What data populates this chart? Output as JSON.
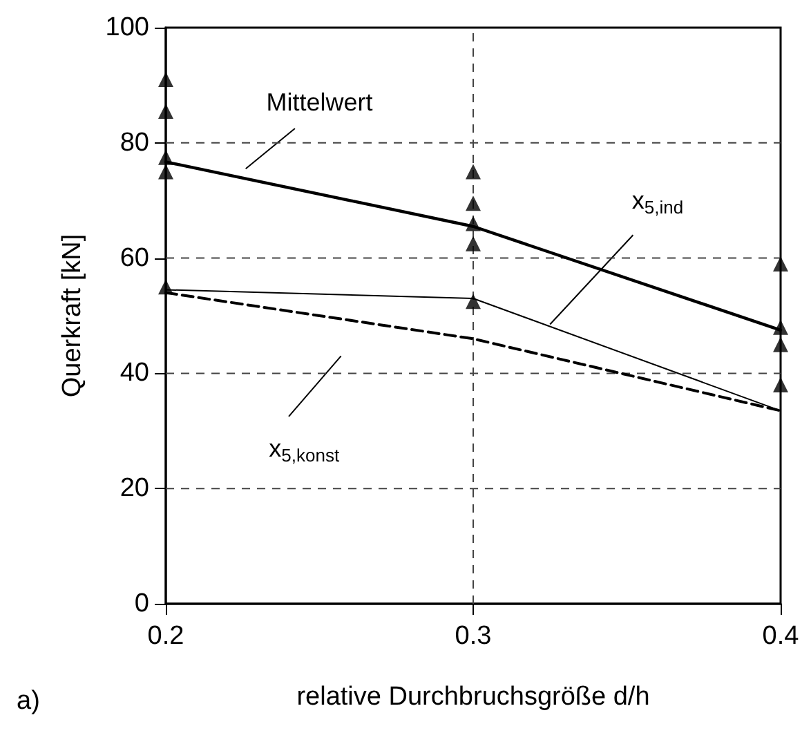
{
  "chart_data": {
    "type": "line",
    "xlabel": "relative Durchbruchsgröße d/h",
    "ylabel": "Querkraft [kN]",
    "xlim": [
      0.2,
      0.4
    ],
    "xticks": [
      0.2,
      0.3,
      0.4
    ],
    "ylim": [
      0,
      100
    ],
    "yticks": [
      0,
      20,
      40,
      60,
      80,
      100
    ],
    "grid": true,
    "legend": false,
    "annotations": [
      "a)"
    ],
    "series": [
      {
        "type": "scatter",
        "marker": "triangle",
        "color": "#000000",
        "x": [
          0.2,
          0.2,
          0.2,
          0.2,
          0.2,
          0.3,
          0.3,
          0.3,
          0.3,
          0.3,
          0.4,
          0.4,
          0.4,
          0.4
        ],
        "values": [
          91,
          85.5,
          77.5,
          75,
          55,
          75,
          69.5,
          66,
          62.5,
          52.5,
          59,
          48,
          45,
          38
        ]
      },
      {
        "name": "Mittelwert",
        "marker": "none",
        "line_style": "solid",
        "color": "#000000",
        "x": [
          0.2,
          0.3,
          0.4
        ],
        "values": [
          76.7,
          65.5,
          47.5
        ]
      },
      {
        "name": "x$_{5,ind}$",
        "marker": "none",
        "line_style": "solid",
        "color": "#000000",
        "x": [
          0.2,
          0.3,
          0.4
        ],
        "values": [
          54.5,
          53,
          33.5
        ]
      },
      {
        "name": "x$_{5,konst}$",
        "marker": "none",
        "line_style": "dashed",
        "color": "#000000",
        "x": [
          0.2,
          0.3,
          0.4
        ],
        "values": [
          54,
          46,
          33.5
        ]
      }
    ]
  }
}
